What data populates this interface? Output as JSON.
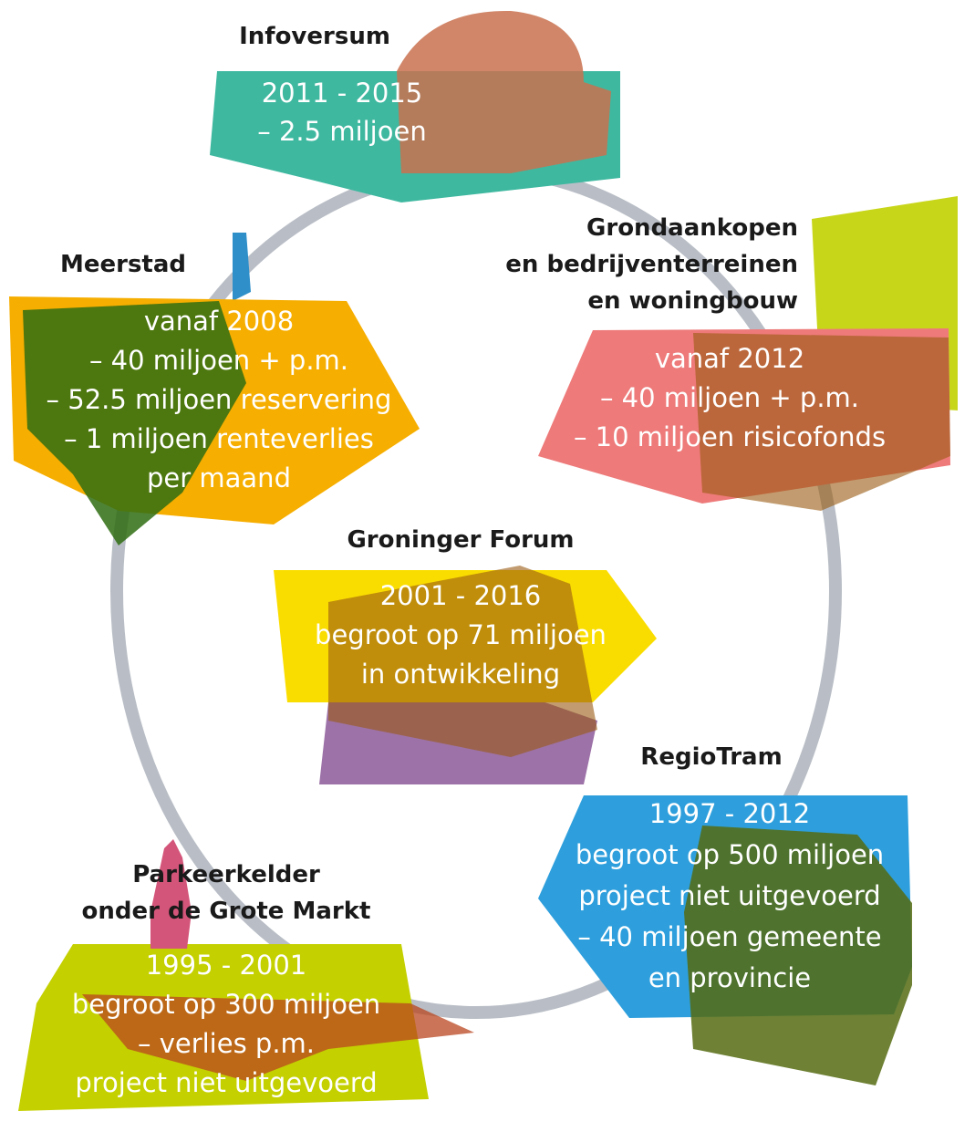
{
  "nodes": [
    {
      "title": [
        "Infoversum"
      ],
      "lines": [
        "2011 - 2015",
        "– 2.5 miljoen"
      ]
    },
    {
      "title": [
        "Grondaankopen",
        "en bedrijventerreinen",
        "en woningbouw"
      ],
      "lines": [
        "vanaf 2012",
        "– 40 miljoen + p.m.",
        "– 10 miljoen risicofonds"
      ]
    },
    {
      "title": [
        "RegioTram"
      ],
      "lines": [
        "1997 - 2012",
        "begroot op 500 miljoen",
        "project niet uitgevoerd",
        "– 40 miljoen gemeente",
        "en provincie"
      ]
    },
    {
      "title": [
        "Parkeerkelder",
        "onder de Grote Markt"
      ],
      "lines": [
        "1995 - 2001",
        "begroot op 300 miljoen",
        "– verlies p.m.",
        "project niet uitgevoerd"
      ]
    },
    {
      "title": [
        "Meerstad"
      ],
      "lines": [
        "vanaf 2008",
        "– 40 miljoen + p.m.",
        "– 52.5 miljoen reservering",
        "– 1 miljoen renteverlies",
        "per maand"
      ]
    },
    {
      "title": [
        "Groninger Forum"
      ],
      "lines": [
        "2001 - 2016",
        "begroot op 71 miljoen",
        "in ontwikkeling"
      ]
    }
  ]
}
